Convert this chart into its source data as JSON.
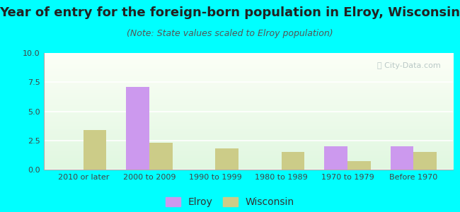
{
  "title": "Year of entry for the foreign-born population in Elroy, Wisconsin",
  "subtitle": "(Note: State values scaled to Elroy population)",
  "categories": [
    "2010 or later",
    "2000 to 2009",
    "1990 to 1999",
    "1980 to 1989",
    "1970 to 1979",
    "Before 1970"
  ],
  "elroy_values": [
    0,
    7.1,
    0,
    0,
    2.0,
    2.0
  ],
  "wisconsin_values": [
    3.4,
    2.3,
    1.8,
    1.5,
    0.7,
    1.5
  ],
  "elroy_color": "#cc99ee",
  "wisconsin_color": "#cccc88",
  "ylim": [
    0,
    10
  ],
  "yticks": [
    0,
    2.5,
    5,
    7.5,
    10
  ],
  "bar_width": 0.35,
  "outer_background": "#00ffff",
  "title_fontsize": 13,
  "subtitle_fontsize": 9,
  "tick_fontsize": 8,
  "legend_fontsize": 10
}
